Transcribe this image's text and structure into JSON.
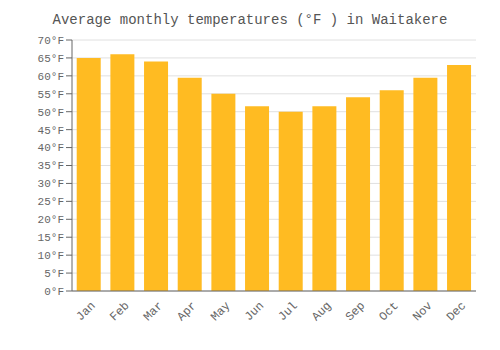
{
  "chart_data": {
    "type": "bar",
    "title": "Average monthly temperatures (°F ) in Waitakere",
    "categories": [
      "Jan",
      "Feb",
      "Mar",
      "Apr",
      "May",
      "Jun",
      "Jul",
      "Aug",
      "Sep",
      "Oct",
      "Nov",
      "Dec"
    ],
    "values": [
      65,
      66,
      64,
      59.5,
      55,
      51.5,
      50,
      51.5,
      54,
      56,
      59.5,
      63
    ],
    "color": "#FFBB22",
    "ylim": [
      0,
      70
    ],
    "yticks": [
      {
        "value": 0,
        "label": "0°F"
      },
      {
        "value": 5,
        "label": "5°F"
      },
      {
        "value": 10,
        "label": "10°F"
      },
      {
        "value": 15,
        "label": "15°F"
      },
      {
        "value": 20,
        "label": "20°F"
      },
      {
        "value": 25,
        "label": "25°F"
      },
      {
        "value": 30,
        "label": "30°F"
      },
      {
        "value": 35,
        "label": "35°F"
      },
      {
        "value": 40,
        "label": "40°F"
      },
      {
        "value": 45,
        "label": "45°F"
      },
      {
        "value": 50,
        "label": "50°F"
      },
      {
        "value": 55,
        "label": "55°F"
      },
      {
        "value": 60,
        "label": "60°F"
      },
      {
        "value": 65,
        "label": "65°F"
      },
      {
        "value": 70,
        "label": "70°F"
      }
    ],
    "grid": true
  }
}
